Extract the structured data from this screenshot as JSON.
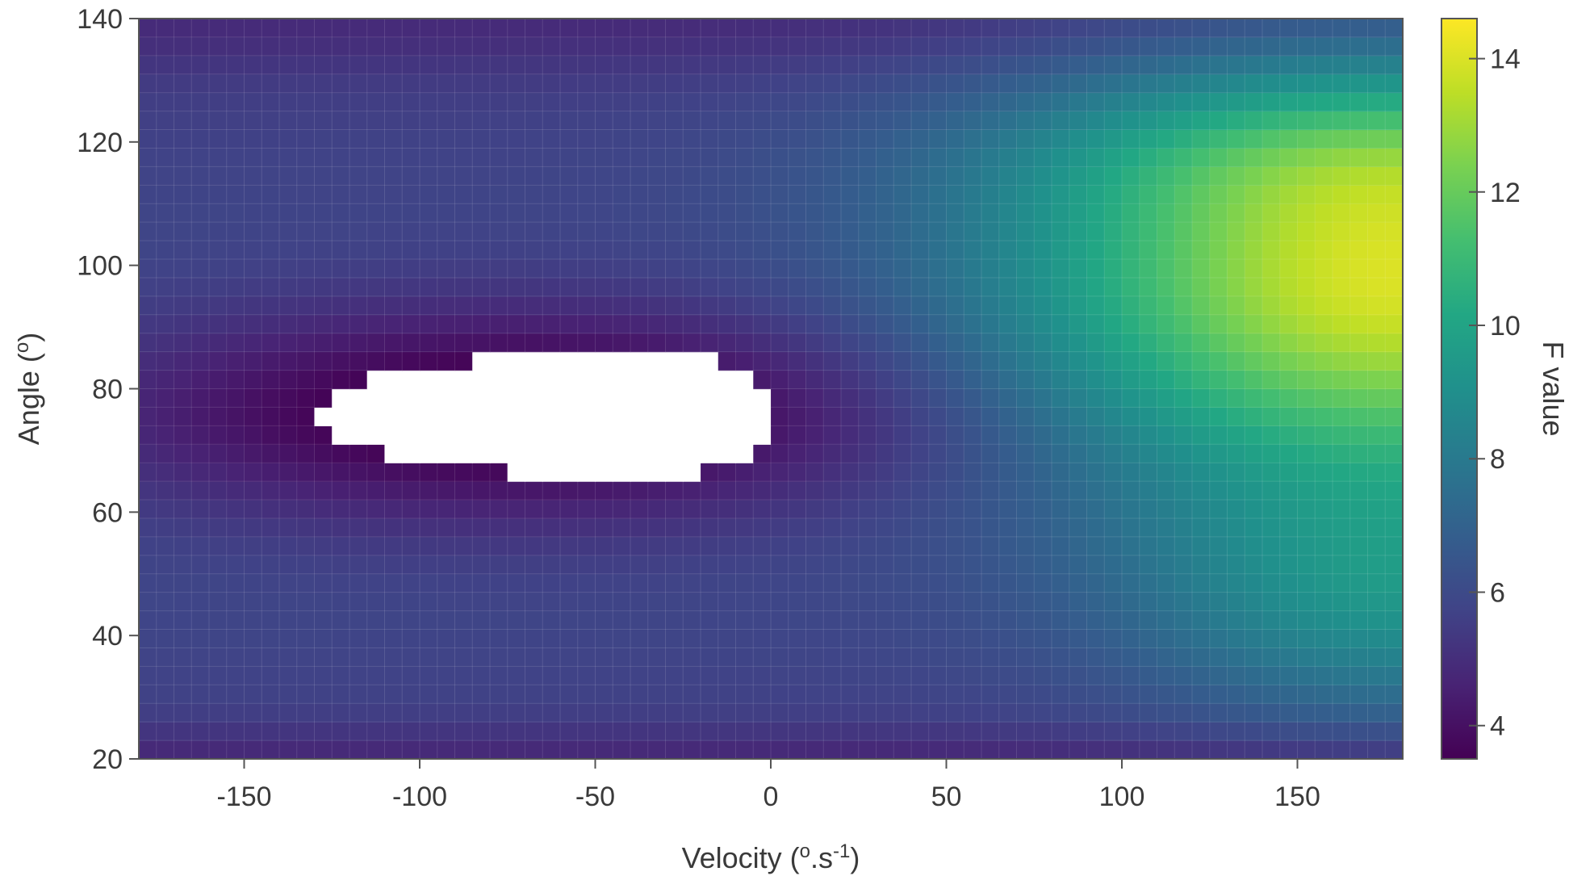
{
  "chart_data": {
    "type": "heatmap",
    "title": "",
    "xlabel": "Velocity (",
    "xlabel_unit": "o",
    "xlabel_unit2": ".s",
    "xlabel_exp": "-1",
    "xlabel_close": ")",
    "ylabel": "Angle (",
    "ylabel_unit": "o",
    "ylabel_close": ")",
    "colorbar_label": "F value",
    "colormap": "viridis",
    "xlim": [
      -180,
      180
    ],
    "ylim": [
      20,
      140
    ],
    "x_ticks": [
      -150,
      -100,
      -50,
      0,
      50,
      100,
      150
    ],
    "y_ticks": [
      20,
      40,
      60,
      80,
      100,
      120,
      140
    ],
    "colorbar_range": [
      3.5,
      14.6
    ],
    "colorbar_ticks": [
      4,
      6,
      8,
      10,
      12,
      14
    ],
    "grid": true,
    "grid_x_step": 5,
    "grid_y_step": 3,
    "peak": {
      "velocity": 170,
      "angle": 97,
      "value": 14.5
    },
    "trough": {
      "velocity": -50,
      "angle": 76,
      "value": 3.6
    },
    "masked_region": {
      "note_fill": "#ffffff",
      "rows": [
        {
          "angle_range": [
            83,
            86
          ],
          "velocity_range": [
            -85,
            -15
          ]
        },
        {
          "angle_range": [
            80,
            83
          ],
          "velocity_range": [
            -115,
            -5
          ]
        },
        {
          "angle_range": [
            77,
            80
          ],
          "velocity_range": [
            -125,
            0
          ]
        },
        {
          "angle_range": [
            74,
            77
          ],
          "velocity_range": [
            -130,
            0
          ]
        },
        {
          "angle_range": [
            71,
            74
          ],
          "velocity_range": [
            -125,
            0
          ]
        },
        {
          "angle_range": [
            68,
            71
          ],
          "velocity_range": [
            -110,
            -5
          ]
        },
        {
          "angle_range": [
            65,
            68
          ],
          "velocity_range": [
            -75,
            -20
          ]
        }
      ]
    },
    "colors": {
      "background": "#ffffff",
      "axis": "#555555",
      "text": "#3a3a3a",
      "grid": "#ffffff"
    }
  }
}
